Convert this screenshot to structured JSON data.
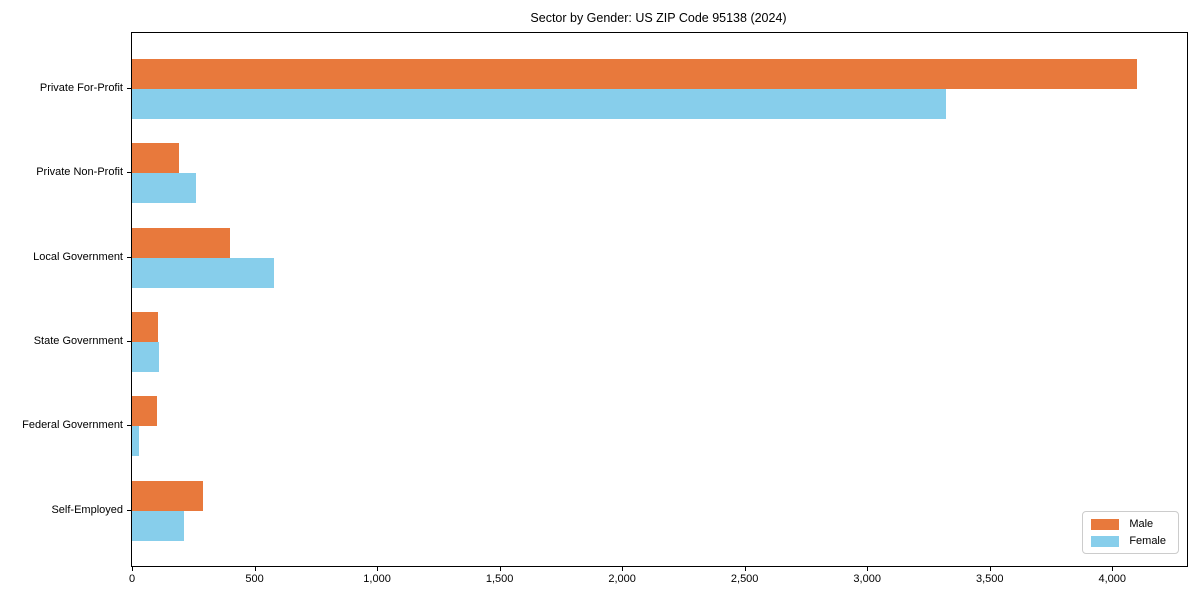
{
  "chart_data": {
    "type": "bar",
    "orientation": "horizontal",
    "title": "Sector by Gender: US ZIP Code 95138 (2024)",
    "categories": [
      "Private For-Profit",
      "Private Non-Profit",
      "Local Government",
      "State Government",
      "Federal Government",
      "Self-Employed"
    ],
    "series": [
      {
        "name": "Male",
        "color": "#e8793c",
        "values": [
          4100,
          190,
          400,
          105,
          103,
          290
        ]
      },
      {
        "name": "Female",
        "color": "#87ceeb",
        "values": [
          3320,
          260,
          580,
          108,
          28,
          210
        ]
      }
    ],
    "xlim": [
      0,
      4305
    ],
    "xticks": [
      0,
      500,
      1000,
      1500,
      2000,
      2500,
      3000,
      3500,
      4000
    ],
    "xtick_labels": [
      "0",
      "500",
      "1,000",
      "1,500",
      "2,000",
      "2,500",
      "3,000",
      "3,500",
      "4,000"
    ],
    "xlabel": "",
    "ylabel": "",
    "grid": false,
    "legend_position": "lower right",
    "background_color": "#ffffff",
    "spine_color": "#000000"
  }
}
